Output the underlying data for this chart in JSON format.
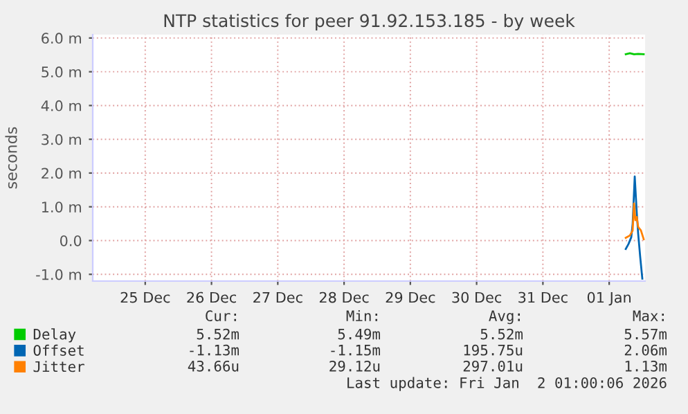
{
  "chart_data": {
    "type": "line",
    "title": "NTP statistics for peer 91.92.153.185 - by week",
    "ylabel": "seconds",
    "xlim": [
      "2025-12-24T17:00",
      "2026-01-02T01:00"
    ],
    "xticks": [
      {
        "value": "2025-12-25T12:00",
        "label": "25 Dec"
      },
      {
        "value": "2025-12-26T12:00",
        "label": "26 Dec"
      },
      {
        "value": "2025-12-27T12:00",
        "label": "27 Dec"
      },
      {
        "value": "2025-12-28T12:00",
        "label": "28 Dec"
      },
      {
        "value": "2025-12-29T12:00",
        "label": "29 Dec"
      },
      {
        "value": "2025-12-30T12:00",
        "label": "30 Dec"
      },
      {
        "value": "2025-12-31T12:00",
        "label": "31 Dec"
      },
      {
        "value": "2026-01-01T12:00",
        "label": "01 Jan"
      }
    ],
    "ylim": [
      -1.2,
      6.1
    ],
    "yticks": [
      {
        "value": -1,
        "label": "-1.0 m"
      },
      {
        "value": 0,
        "label": "0.0"
      },
      {
        "value": 1,
        "label": "1.0 m"
      },
      {
        "value": 2,
        "label": "2.0 m"
      },
      {
        "value": 3,
        "label": "3.0 m"
      },
      {
        "value": 4,
        "label": "4.0 m"
      },
      {
        "value": 5,
        "label": "5.0 m"
      },
      {
        "value": 6,
        "label": "6.0 m"
      }
    ],
    "grid": true,
    "legend": "bottom left",
    "series": [
      {
        "name": "Delay",
        "color": "#00cc00",
        "x": [
          "2026-01-01T18:00",
          "2026-01-01T19:30",
          "2026-01-01T21:00",
          "2026-01-01T22:30",
          "2026-01-02T00:30"
        ],
        "values": [
          5.52,
          5.55,
          5.52,
          5.53,
          5.52
        ]
      },
      {
        "name": "Offset",
        "color": "#0066b3",
        "x": [
          "2026-01-01T18:00",
          "2026-01-01T19:00",
          "2026-01-01T20:00",
          "2026-01-01T20:30",
          "2026-01-01T21:15",
          "2026-01-01T22:00",
          "2026-01-01T22:30",
          "2026-01-01T23:15",
          "2026-01-02T00:00"
        ],
        "values": [
          -0.25,
          -0.1,
          0.1,
          0.5,
          1.9,
          0.8,
          0.2,
          -0.5,
          -1.13
        ]
      },
      {
        "name": "Jitter",
        "color": "#ff8000",
        "x": [
          "2026-01-01T18:00",
          "2026-01-01T19:30",
          "2026-01-01T20:30",
          "2026-01-01T21:00",
          "2026-01-01T21:30",
          "2026-01-01T22:00",
          "2026-01-01T22:30",
          "2026-01-01T23:30",
          "2026-01-02T00:30"
        ],
        "values": [
          0.08,
          0.15,
          0.3,
          1.1,
          0.6,
          0.7,
          0.4,
          0.3,
          0.04
        ]
      }
    ],
    "annotations": [
      "Cur:",
      "Min:",
      "Avg:",
      "Max:",
      "5.52m",
      "5.49m",
      "5.52m",
      "5.57m",
      "-1.13m",
      "-1.15m",
      "195.75u",
      "2.06m",
      "43.66u",
      "29.12u",
      "297.01u",
      "1.13m",
      "Last update: Fri Jan  2 01:00:06 2026"
    ]
  }
}
